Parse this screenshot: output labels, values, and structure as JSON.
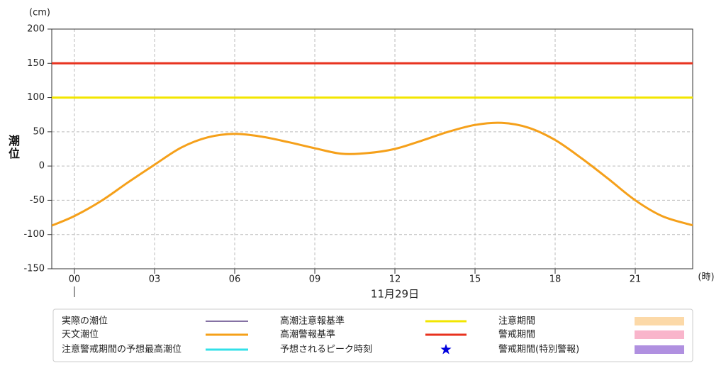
{
  "chart_data": {
    "type": "line",
    "y_unit": "(cm)",
    "y_label": "潮位",
    "x_unit": "(時)",
    "x_label": "11月29日",
    "xlim": [
      -0.85,
      23.15
    ],
    "xticks": [
      {
        "value": 0,
        "label": "00"
      },
      {
        "value": 3,
        "label": "03"
      },
      {
        "value": 6,
        "label": "06"
      },
      {
        "value": 9,
        "label": "09"
      },
      {
        "value": 12,
        "label": "12"
      },
      {
        "value": 15,
        "label": "15"
      },
      {
        "value": 18,
        "label": "18"
      },
      {
        "value": 21,
        "label": "21"
      }
    ],
    "ylim": [
      -150,
      200
    ],
    "yticks": [
      -150,
      -100,
      -50,
      0,
      50,
      100,
      150,
      200
    ],
    "grid": true,
    "x": [
      -0.85,
      0,
      1,
      2,
      3,
      4,
      5,
      6,
      7,
      8,
      9,
      10,
      11,
      12,
      13,
      14,
      15,
      16,
      17,
      18,
      19,
      20,
      21,
      22,
      23,
      23.15
    ],
    "series": [
      {
        "name": "実際の潮位",
        "color": "#3c1f6e",
        "symbol": "thin-line"
      },
      {
        "name": "高潮注意報基準",
        "color": "#f2e600",
        "symbol": "line",
        "value": 100
      },
      {
        "name": "注意期間",
        "color": "#fcd9a8",
        "symbol": "rect"
      },
      {
        "name": "天文潮位",
        "color": "#f5a01a",
        "symbol": "line",
        "values": [
          -87,
          -73,
          -51,
          -24,
          2,
          27,
          42,
          47,
          43,
          35,
          26,
          18,
          19,
          25,
          37,
          50,
          60,
          63,
          56,
          38,
          11,
          -19,
          -50,
          -73,
          -85,
          -86
        ]
      },
      {
        "name": "高潮警報基準",
        "color": "#e8321e",
        "symbol": "line",
        "value": 150
      },
      {
        "name": "警戒期間",
        "color": "#f9b5cb",
        "symbol": "rect"
      },
      {
        "name": "注意警戒期間の予想最高潮位",
        "color": "#33e0e8",
        "symbol": "line"
      },
      {
        "name": "予想されるピーク時刻",
        "color": "#0000dd",
        "symbol": "star"
      },
      {
        "name": "警戒期間(特別警報)",
        "color": "#b090e0",
        "symbol": "rect"
      }
    ]
  }
}
